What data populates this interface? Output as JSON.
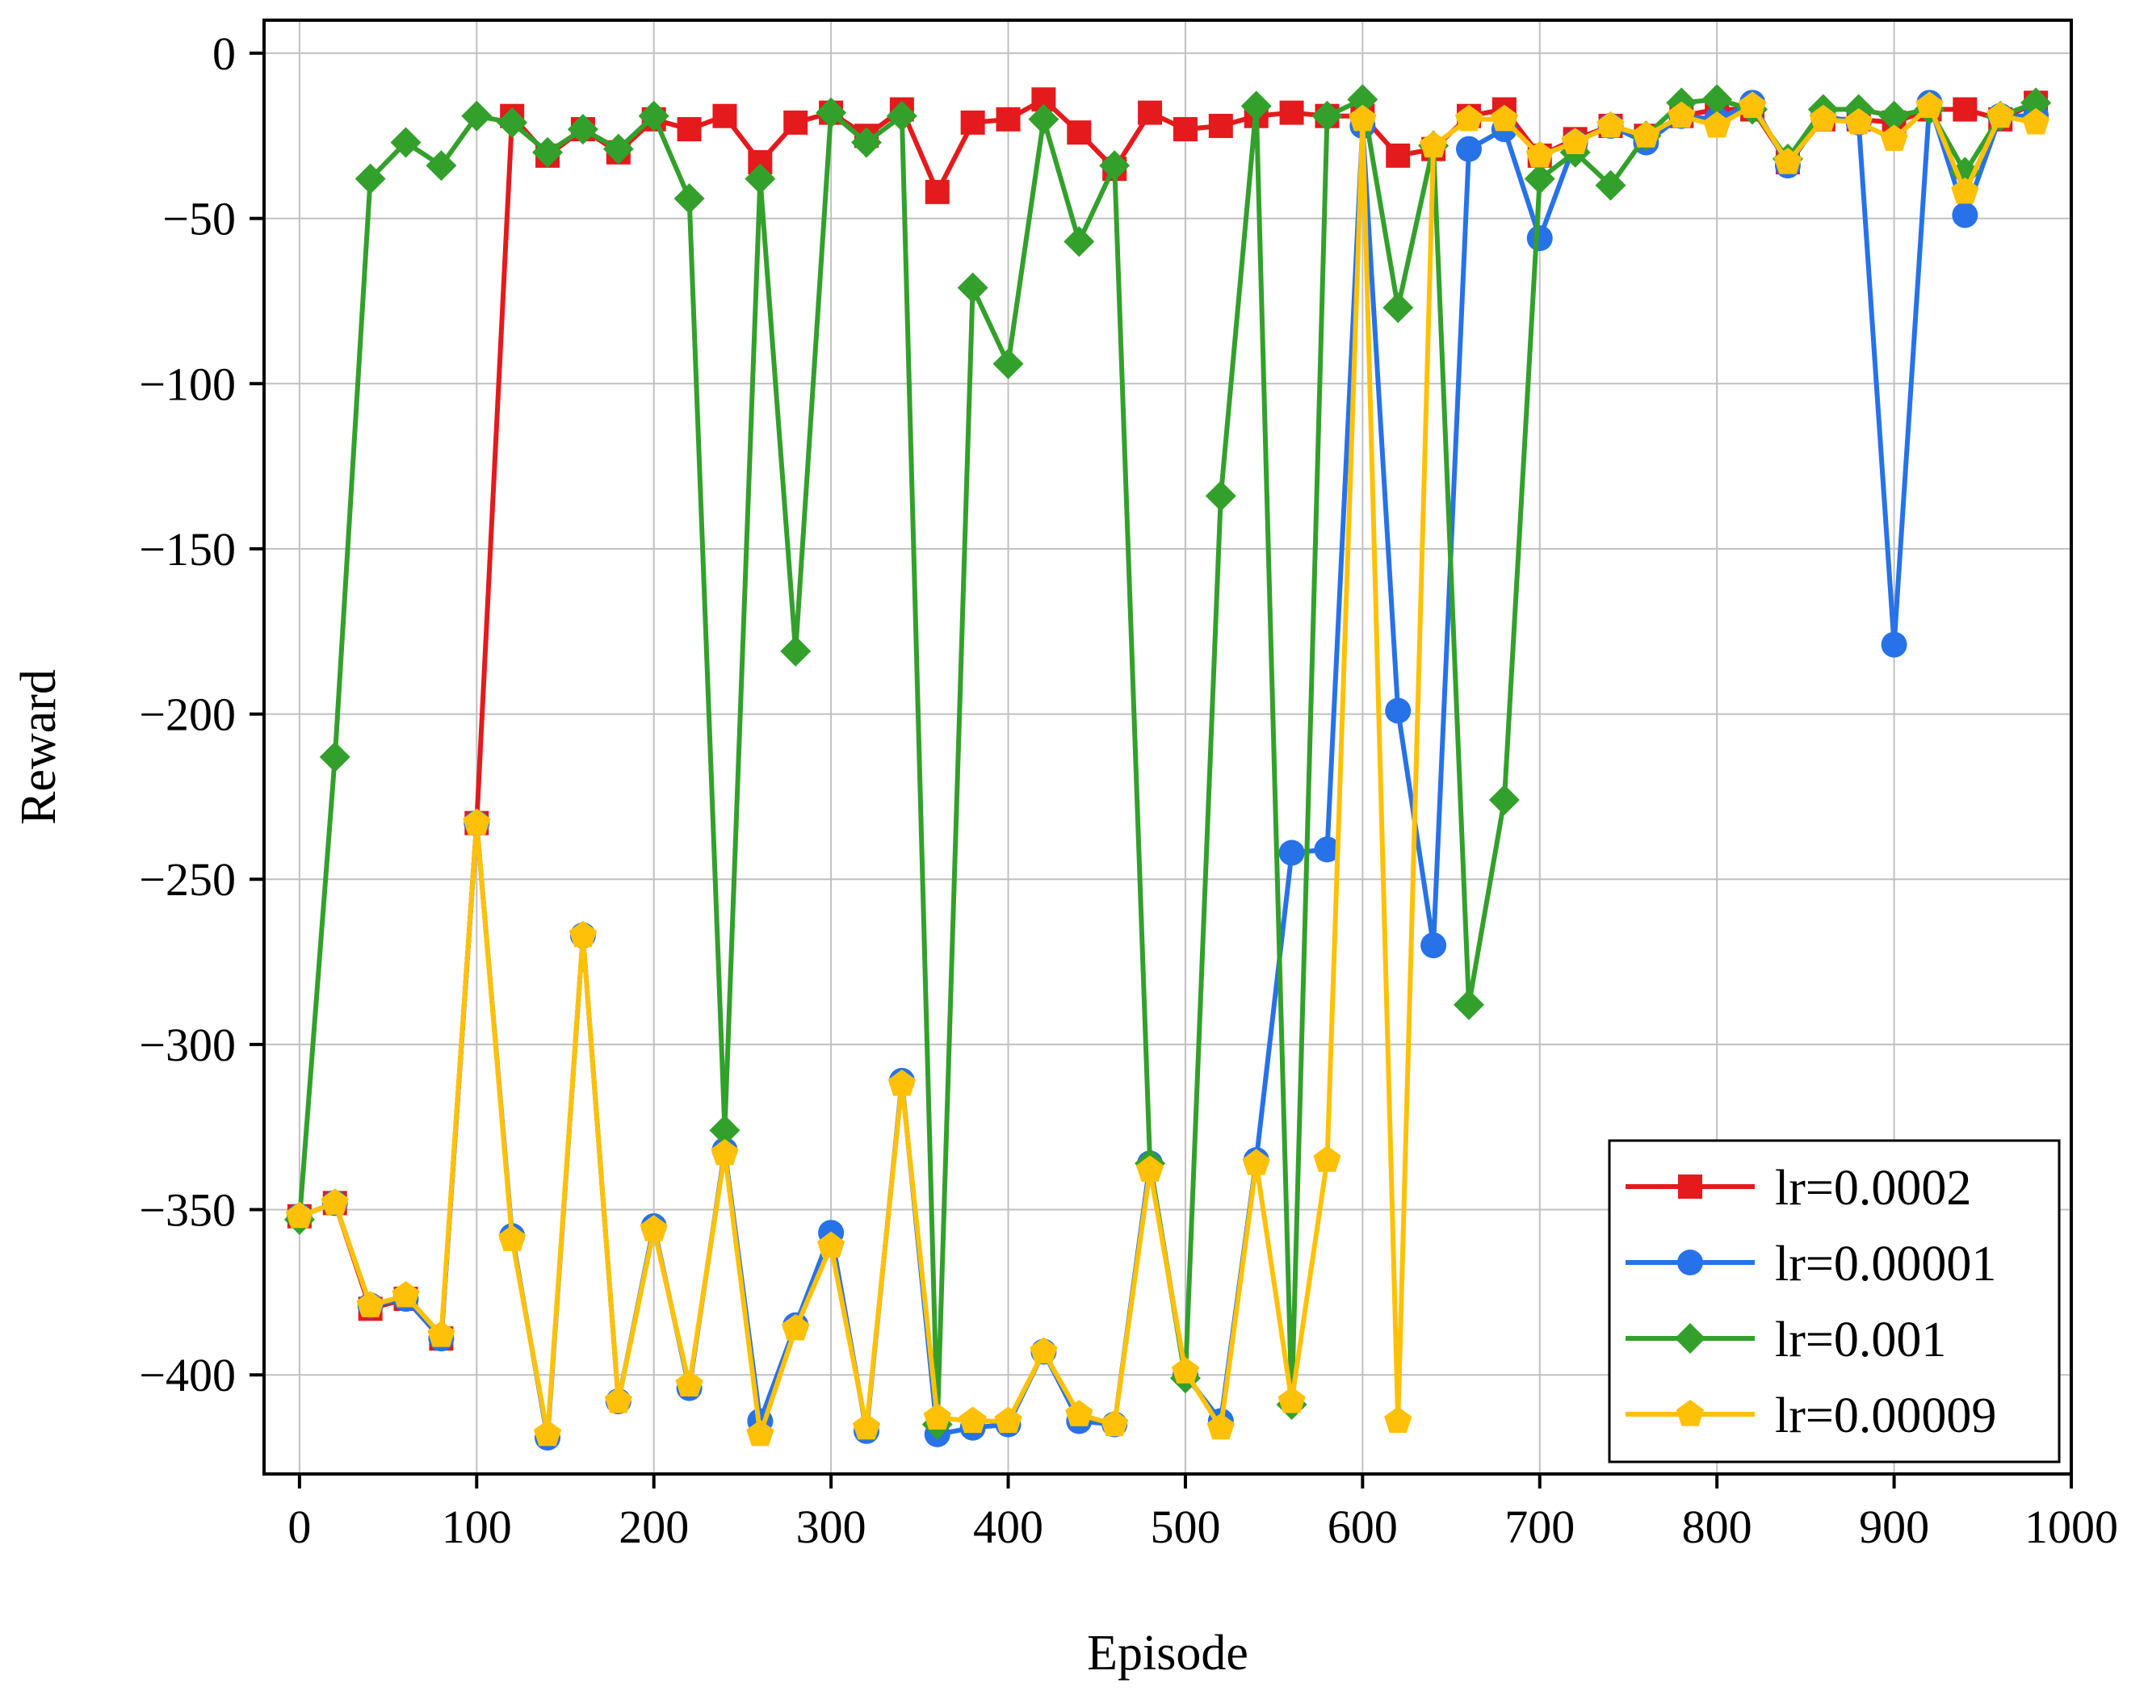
{
  "chart_data": {
    "type": "line",
    "xlabel": "Episode",
    "ylabel": "Reward",
    "xlim": [
      -20,
      1000
    ],
    "ylim": [
      -430,
      10
    ],
    "x_ticks": [
      0,
      100,
      200,
      300,
      400,
      500,
      600,
      700,
      800,
      900,
      1000
    ],
    "y_ticks": [
      0,
      -50,
      -100,
      -150,
      -200,
      -250,
      -300,
      -350,
      -400
    ],
    "x_tick_labels": [
      "0",
      "100",
      "200",
      "300",
      "400",
      "500",
      "600",
      "700",
      "800",
      "900",
      "1000"
    ],
    "y_tick_labels": [
      "0",
      "−50",
      "−100",
      "−150",
      "−200",
      "−250",
      "−300",
      "−350",
      "−400"
    ],
    "grid": true,
    "legend_position": "bottom-right",
    "x": [
      0,
      20,
      40,
      60,
      80,
      100,
      120,
      140,
      160,
      180,
      200,
      220,
      240,
      260,
      280,
      300,
      320,
      340,
      360,
      380,
      400,
      420,
      440,
      460,
      480,
      500,
      520,
      540,
      560,
      580,
      600,
      620,
      640,
      660,
      680,
      700,
      720,
      740,
      760,
      780,
      800,
      820,
      840,
      860,
      880,
      900,
      920,
      940,
      960,
      980
    ],
    "series": [
      {
        "name": "lr=0.0002",
        "color": "#e41a1c",
        "marker": "square",
        "values": [
          -352,
          -348,
          -380,
          -377,
          -389,
          -233,
          -19,
          -31,
          -23,
          -30,
          -20,
          -23,
          -19,
          -33,
          -21,
          -18,
          -25,
          -17,
          -42,
          -21,
          -20,
          -14,
          -24,
          -35,
          -18,
          -23,
          -22,
          -19,
          -18,
          -19,
          -19,
          -31,
          -29,
          -19,
          -17,
          -31,
          -26,
          -22,
          -25,
          -19,
          -17,
          -17,
          -33,
          -20,
          -20,
          -21,
          -17,
          -17,
          -20,
          -15
        ]
      },
      {
        "name": "lr=0.00001",
        "color": "#2772e8",
        "marker": "circle",
        "values": [
          -352,
          -348,
          -379,
          -377,
          -389,
          -233,
          -358,
          -419,
          -267,
          -408,
          -355,
          -404,
          -332,
          -414,
          -385,
          -357,
          -417,
          -311,
          -418,
          -416,
          -415,
          -393,
          -414,
          -415,
          -336,
          -400,
          -414,
          -335,
          -242,
          -241,
          -22,
          -199,
          -270,
          -29,
          -23,
          -56,
          -27,
          -22,
          -27,
          -19,
          -20,
          -15,
          -34,
          -19,
          -21,
          -179,
          -15,
          -49,
          -19,
          -19
        ]
      },
      {
        "name": "lr=0.001",
        "color": "#33a02c",
        "marker": "diamond",
        "values": [
          -353,
          -213,
          -38,
          -27,
          -34,
          -19,
          -21,
          -30,
          -23,
          -29,
          -19,
          -44,
          -326,
          -38,
          -181,
          -18,
          -27,
          -19,
          -415,
          -71,
          -94,
          -20,
          -57,
          -34,
          -336,
          -401,
          -134,
          -16,
          -409,
          -19,
          -14,
          -77,
          -28,
          -288,
          -226,
          -38,
          -30,
          -40,
          -25,
          -15,
          -14,
          -17,
          -32,
          -17,
          -17,
          -19,
          -17,
          -36,
          -19,
          -15
        ]
      },
      {
        "name": "lr=0.00009",
        "color": "#ffc107",
        "marker": "pentagon",
        "values": [
          -352,
          -348,
          -379,
          -376,
          -388,
          -233,
          -359,
          -418,
          -267,
          -408,
          -356,
          -403,
          -333,
          -418,
          -386,
          -361,
          -416,
          -312,
          -413,
          -414,
          -414,
          -393,
          -412,
          -415,
          -338,
          -399,
          -416,
          -336,
          -408,
          -335,
          -20,
          -414,
          -28,
          -20,
          -20,
          -31,
          -27,
          -22,
          -25,
          -19,
          -22,
          -16,
          -33,
          -20,
          -21,
          -26,
          -16,
          -42,
          -19,
          -21
        ]
      }
    ]
  }
}
